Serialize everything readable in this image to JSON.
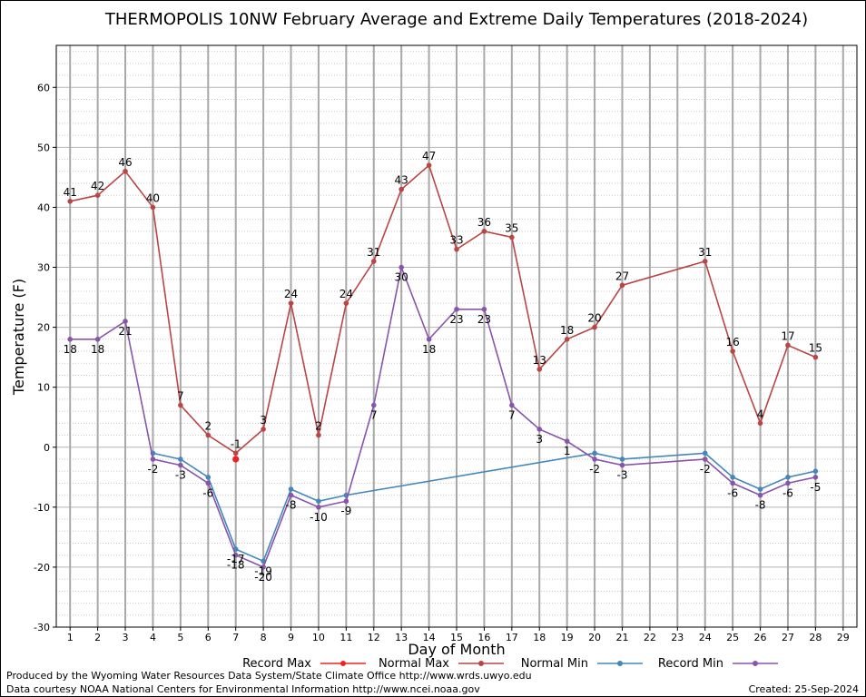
{
  "chart_data": {
    "type": "line",
    "title": "THERMOPOLIS 10NW February Average and Extreme Daily Temperatures (2018-2024)",
    "xlabel": "Day of Month",
    "ylabel": "Temperature (F)",
    "xlim": [
      0.5,
      29.5
    ],
    "ylim": [
      -30,
      67
    ],
    "x_ticks": [
      1,
      2,
      3,
      4,
      5,
      6,
      7,
      8,
      9,
      10,
      11,
      12,
      13,
      14,
      15,
      16,
      17,
      18,
      19,
      20,
      21,
      22,
      23,
      24,
      25,
      26,
      27,
      28,
      29
    ],
    "y_ticks": [
      -30,
      -20,
      -10,
      0,
      10,
      20,
      30,
      40,
      50,
      60
    ],
    "grid": true,
    "legend_position": "bottom",
    "series": [
      {
        "name": "Record Max",
        "color": "#ee2222",
        "points": [
          [
            7,
            -2
          ]
        ],
        "labels": []
      },
      {
        "name": "Normal Max",
        "color": "#bb4444",
        "points": [
          [
            1,
            41
          ],
          [
            2,
            42
          ],
          [
            3,
            46
          ],
          [
            4,
            40
          ],
          [
            5,
            7
          ],
          [
            6,
            2
          ],
          [
            7,
            -1
          ],
          [
            8,
            3
          ],
          [
            9,
            24
          ],
          [
            10,
            2
          ],
          [
            11,
            24
          ],
          [
            12,
            31
          ],
          [
            13,
            43
          ],
          [
            14,
            47
          ],
          [
            15,
            33
          ],
          [
            16,
            36
          ],
          [
            17,
            35
          ],
          [
            18,
            13
          ],
          [
            19,
            18
          ],
          [
            20,
            20
          ],
          [
            21,
            27
          ],
          [
            24,
            31
          ],
          [
            25,
            16
          ],
          [
            26,
            4
          ],
          [
            27,
            17
          ],
          [
            28,
            15
          ]
        ],
        "labels": [
          {
            "day": 1,
            "text": "41",
            "pos": "above"
          },
          {
            "day": 2,
            "text": "42",
            "pos": "above"
          },
          {
            "day": 3,
            "text": "46",
            "pos": "above"
          },
          {
            "day": 4,
            "text": "40",
            "pos": "above"
          },
          {
            "day": 5,
            "text": "7",
            "pos": "above"
          },
          {
            "day": 6,
            "text": "2",
            "pos": "above"
          },
          {
            "day": 7,
            "text": "-1",
            "pos": "above"
          },
          {
            "day": 8,
            "text": "3",
            "pos": "above"
          },
          {
            "day": 9,
            "text": "24",
            "pos": "above"
          },
          {
            "day": 10,
            "text": "2",
            "pos": "above"
          },
          {
            "day": 11,
            "text": "24",
            "pos": "above"
          },
          {
            "day": 12,
            "text": "31",
            "pos": "above"
          },
          {
            "day": 13,
            "text": "43",
            "pos": "above"
          },
          {
            "day": 14,
            "text": "47",
            "pos": "above"
          },
          {
            "day": 15,
            "text": "33",
            "pos": "above"
          },
          {
            "day": 16,
            "text": "36",
            "pos": "above"
          },
          {
            "day": 17,
            "text": "35",
            "pos": "above"
          },
          {
            "day": 18,
            "text": "13",
            "pos": "above"
          },
          {
            "day": 19,
            "text": "18",
            "pos": "above"
          },
          {
            "day": 20,
            "text": "20",
            "pos": "above"
          },
          {
            "day": 21,
            "text": "27",
            "pos": "above"
          },
          {
            "day": 24,
            "text": "31",
            "pos": "above"
          },
          {
            "day": 25,
            "text": "16",
            "pos": "above"
          },
          {
            "day": 26,
            "text": "4",
            "pos": "above"
          },
          {
            "day": 27,
            "text": "17",
            "pos": "above"
          },
          {
            "day": 28,
            "text": "15",
            "pos": "above"
          }
        ]
      },
      {
        "name": "Normal Min",
        "color": "#4488bb",
        "points": [
          [
            4,
            -1
          ],
          [
            5,
            -2
          ],
          [
            6,
            -5
          ],
          [
            7,
            -17
          ],
          [
            8,
            -19
          ],
          [
            9,
            -7
          ],
          [
            10,
            -9
          ],
          [
            11,
            -8
          ],
          [
            20,
            -1
          ],
          [
            21,
            -2
          ],
          [
            24,
            -1
          ],
          [
            25,
            -5
          ],
          [
            26,
            -7
          ],
          [
            27,
            -5
          ],
          [
            28,
            -4
          ]
        ],
        "labels": []
      },
      {
        "name": "Record Min",
        "color": "#8855aa",
        "points": [
          [
            1,
            18
          ],
          [
            2,
            18
          ],
          [
            3,
            21
          ],
          [
            4,
            -2
          ],
          [
            5,
            -3
          ],
          [
            6,
            -6
          ],
          [
            7,
            -18
          ],
          [
            8,
            -20
          ],
          [
            9,
            -8
          ],
          [
            10,
            -10
          ],
          [
            11,
            -9
          ],
          [
            12,
            7
          ],
          [
            13,
            30
          ],
          [
            14,
            18
          ],
          [
            15,
            23
          ],
          [
            16,
            23
          ],
          [
            17,
            7
          ],
          [
            18,
            3
          ],
          [
            19,
            1
          ],
          [
            20,
            -2
          ],
          [
            21,
            -3
          ],
          [
            24,
            -2
          ],
          [
            25,
            -6
          ],
          [
            26,
            -8
          ],
          [
            27,
            -6
          ],
          [
            28,
            -5
          ]
        ],
        "labels": [
          {
            "day": 1,
            "text": "18",
            "pos": "below"
          },
          {
            "day": 2,
            "text": "18",
            "pos": "below"
          },
          {
            "day": 3,
            "text": "21",
            "pos": "below"
          },
          {
            "day": 4,
            "text": "-2",
            "pos": "below"
          },
          {
            "day": 5,
            "text": "-3",
            "pos": "below"
          },
          {
            "day": 6,
            "text": "-6",
            "pos": "below"
          },
          {
            "day": 7,
            "text": "-18",
            "pos": "below"
          },
          {
            "day": 8,
            "text": "-20",
            "pos": "below"
          },
          {
            "day": 9,
            "text": "-8",
            "pos": "below"
          },
          {
            "day": 10,
            "text": "-10",
            "pos": "below"
          },
          {
            "day": 11,
            "text": "-9",
            "pos": "below"
          },
          {
            "day": 12,
            "text": "7",
            "pos": "below"
          },
          {
            "day": 13,
            "text": "30",
            "pos": "below"
          },
          {
            "day": 14,
            "text": "18",
            "pos": "below"
          },
          {
            "day": 15,
            "text": "23",
            "pos": "below"
          },
          {
            "day": 16,
            "text": "23",
            "pos": "below"
          },
          {
            "day": 17,
            "text": "7",
            "pos": "below"
          },
          {
            "day": 18,
            "text": "3",
            "pos": "below"
          },
          {
            "day": 19,
            "text": "1",
            "pos": "below"
          },
          {
            "day": 20,
            "text": "-2",
            "pos": "below"
          },
          {
            "day": 21,
            "text": "-3",
            "pos": "below"
          },
          {
            "day": 24,
            "text": "-2",
            "pos": "below"
          },
          {
            "day": 25,
            "text": "-6",
            "pos": "below"
          },
          {
            "day": 26,
            "text": "-8",
            "pos": "below"
          },
          {
            "day": 27,
            "text": "-6",
            "pos": "below"
          },
          {
            "day": 28,
            "text": "-5",
            "pos": "below"
          }
        ]
      }
    ],
    "extra_labels": [
      {
        "day": 7,
        "value": -17,
        "text": "-17",
        "pos": "below"
      },
      {
        "day": 8,
        "value": -19,
        "text": "-19",
        "pos": "below"
      }
    ]
  },
  "footer": {
    "produced_by": "Produced by the Wyoming Water Resources Data System/State Climate Office http://www.wrds.uwyo.edu",
    "data_courtesy": "Data courtesy NOAA National Centers for Environmental Information http://www.ncei.noaa.gov",
    "created": "Created:  25-Sep-2024"
  }
}
